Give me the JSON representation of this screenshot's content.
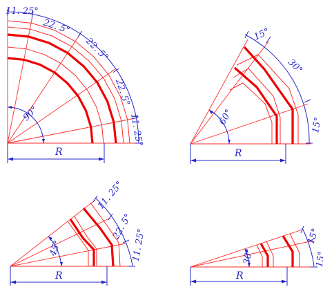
{
  "colors": {
    "thin_red": "#ff2a2a",
    "thick_red": "#ee0000",
    "dimension_blue": "#2525c8",
    "background": "#ffffff"
  },
  "figures": [
    {
      "id": "fig-90",
      "total_angle": "90°",
      "radius_label": "R",
      "segment_labels": [
        "11. 25°",
        "22. 5°",
        "22. 5°",
        "22. 5°",
        "11. 25°"
      ]
    },
    {
      "id": "fig-60",
      "total_angle": "60°",
      "radius_label": "R",
      "segment_labels": [
        "15°",
        "30°",
        "15°"
      ]
    },
    {
      "id": "fig-45",
      "total_angle": "45°",
      "radius_label": "R",
      "segment_labels": [
        "11. 25°",
        "22. 5°",
        "11. 25°"
      ]
    },
    {
      "id": "fig-30",
      "total_angle": "30°",
      "radius_label": "R",
      "segment_labels": [
        "15°",
        "15°"
      ]
    }
  ]
}
